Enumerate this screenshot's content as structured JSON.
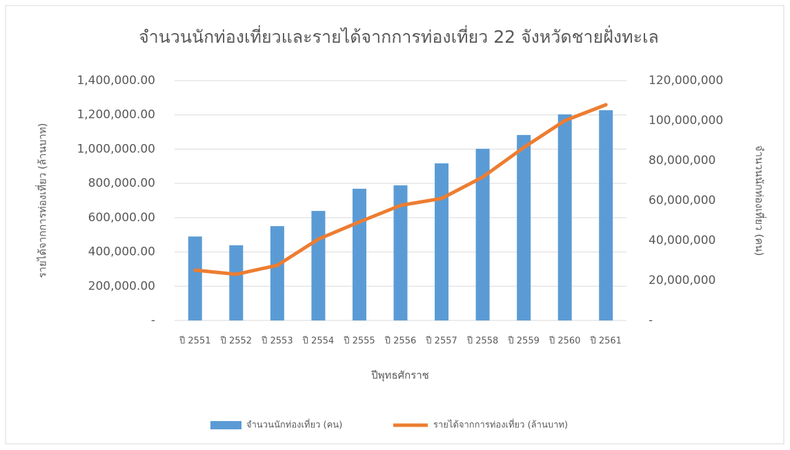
{
  "chart_data": {
    "type": "bar_line",
    "title": "จำนวนนักท่องเที่ยวและรายได้จากการท่องเที่ยว  22 จังหวัดชายฝั่งทะเล",
    "x_label": "ปีพุทธศักราช",
    "y_label": "รายได้จากการท่องเที่ยว (ล้านบาท)",
    "y2_label": "จำนวนนักท่องเที่ยว (คน)",
    "categories": [
      "ปี 2551",
      "ปี 2552",
      "ปี 2553",
      "ปี 2554",
      "ปี 2555",
      "ปี 2556",
      "ปี 2557",
      "ปี 2558",
      "ปี 2559",
      "ปี 2560",
      "ปี 2561"
    ],
    "series": [
      {
        "name": "จำนวนนักท่องเที่ยว (คน)",
        "type": "bar",
        "axis": "y2",
        "color": "#5b9bd5",
        "values": [
          42000000,
          37600000,
          47200000,
          54800000,
          65900000,
          67600000,
          78600000,
          85900000,
          92800000,
          103100000,
          105200000
        ]
      },
      {
        "name": "รายได้จากการท่องเที่ยว (ล้านบาท)",
        "type": "line",
        "axis": "y",
        "color": "#ed7d31",
        "values": [
          293700,
          269500,
          321800,
          474700,
          575300,
          671800,
          712100,
          836800,
          1009800,
          1166700,
          1259200
        ]
      }
    ],
    "ylim": [
      0,
      1400000
    ],
    "yticks": [
      {
        "value": 0,
        "label": "-"
      },
      {
        "value": 200000,
        "label": "200,000.00"
      },
      {
        "value": 400000,
        "label": "400,000.00"
      },
      {
        "value": 600000,
        "label": "600,000.00"
      },
      {
        "value": 800000,
        "label": "800,000.00"
      },
      {
        "value": 1000000,
        "label": "1,000,000.00"
      },
      {
        "value": 1200000,
        "label": "1,200,000.00"
      },
      {
        "value": 1400000,
        "label": "1,400,000.00"
      }
    ],
    "y2lim": [
      0,
      120000000
    ],
    "y2ticks": [
      {
        "value": 0,
        "label": "-"
      },
      {
        "value": 20000000,
        "label": "20,000,000"
      },
      {
        "value": 40000000,
        "label": "40,000,000"
      },
      {
        "value": 60000000,
        "label": "60,000,000"
      },
      {
        "value": 80000000,
        "label": "80,000,000"
      },
      {
        "value": 100000000,
        "label": "100,000,000"
      },
      {
        "value": 120000000,
        "label": "120,000,000"
      }
    ],
    "grid": true,
    "legend": "bottom"
  }
}
